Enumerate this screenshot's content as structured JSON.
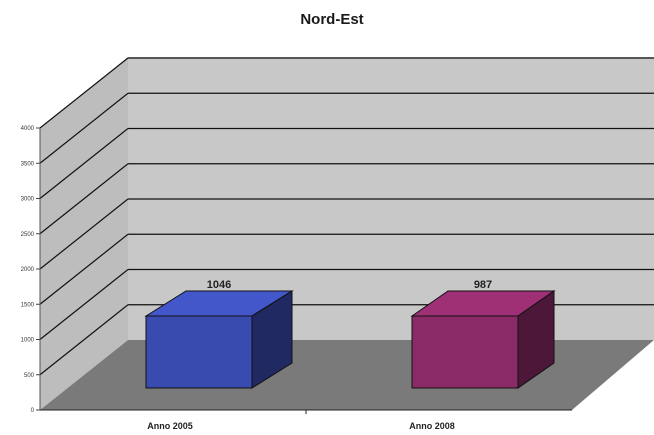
{
  "chart_data": {
    "type": "bar",
    "title": "Nord-Est",
    "categories": [
      "Anno 2005",
      "Anno 2008"
    ],
    "values": [
      1046,
      987
    ],
    "data_labels": [
      "1046",
      "987"
    ],
    "ylim": [
      0,
      4000
    ],
    "yticks": [
      "0",
      "500",
      "1000",
      "1500",
      "2000",
      "2500",
      "3000",
      "3500",
      "4000"
    ],
    "grid": true,
    "style": "3d",
    "series": [
      {
        "values": [
          1046,
          987
        ]
      }
    ]
  },
  "colors": {
    "bar_colors": [
      "#3a4bb0",
      "#8a2a66"
    ],
    "back_wall": "#c8c8c8",
    "side_wall": "#bdbdbd",
    "floor": "#7a7a7a"
  }
}
